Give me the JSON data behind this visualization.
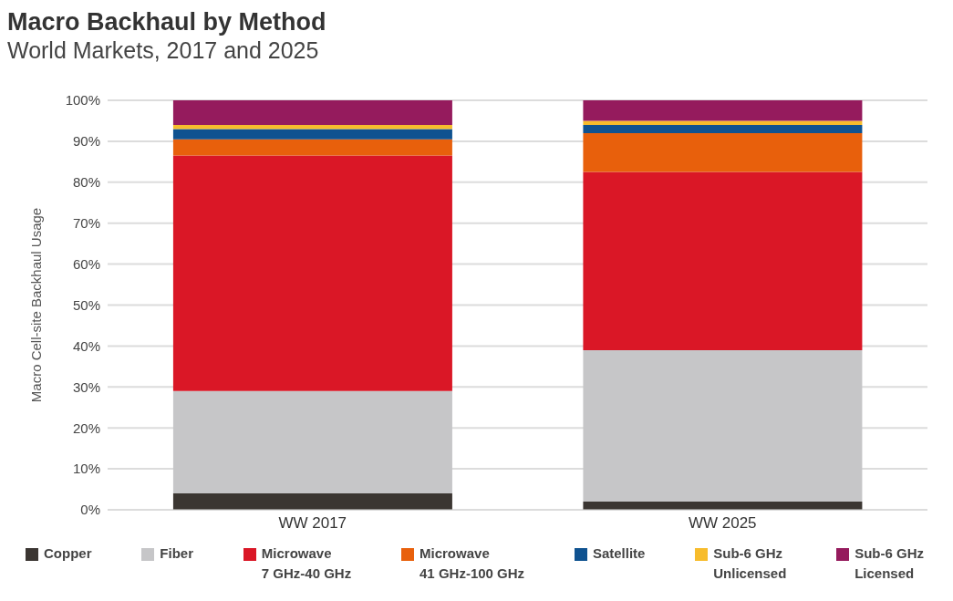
{
  "chart_data": {
    "type": "bar",
    "title": "Macro Backhaul by Method",
    "subtitle": "World Markets, 2017 and 2025",
    "ylabel": "Macro Cell-site Backhaul Usage",
    "categories": [
      "WW 2017",
      "WW 2025"
    ],
    "stacked": true,
    "grid": "y",
    "legend": "bottom",
    "ylim": [
      0,
      100
    ],
    "yticks": [
      {
        "value": 0,
        "label": "0%"
      },
      {
        "value": 10,
        "label": "10%"
      },
      {
        "value": 20,
        "label": "20%"
      },
      {
        "value": 30,
        "label": "30%"
      },
      {
        "value": 40,
        "label": "40%"
      },
      {
        "value": 50,
        "label": "50%"
      },
      {
        "value": 60,
        "label": "60%"
      },
      {
        "value": 70,
        "label": "70%"
      },
      {
        "value": 80,
        "label": "80%"
      },
      {
        "value": 90,
        "label": "90%"
      },
      {
        "value": 100,
        "label": "100%"
      }
    ],
    "series": [
      {
        "name": "Copper",
        "color": "#3b3632",
        "values": [
          4,
          2
        ]
      },
      {
        "name": "Fiber",
        "color": "#c6c6c8",
        "values": [
          25,
          37
        ]
      },
      {
        "name": "Microwave\n7 GHz-40 GHz",
        "color": "#da1726",
        "values": [
          57.5,
          43.5
        ]
      },
      {
        "name": "Microwave\n41 GHz-100 GHz",
        "color": "#e8600c",
        "values": [
          4,
          9.5
        ]
      },
      {
        "name": "Satellite",
        "color": "#0f5290",
        "values": [
          2.5,
          2
        ]
      },
      {
        "name": "Sub-6 GHz\nUnlicensed",
        "color": "#f7bc2c",
        "values": [
          1,
          1
        ]
      },
      {
        "name": "Sub-6 GHz\nLicensed",
        "color": "#951b5d",
        "values": [
          6,
          5
        ]
      }
    ]
  }
}
